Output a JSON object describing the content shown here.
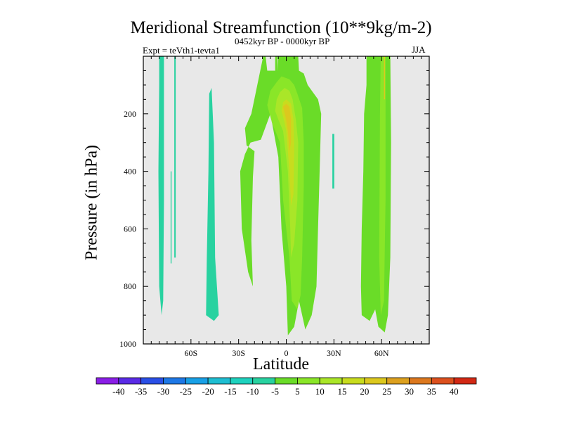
{
  "chart_data": {
    "type": "contour",
    "title": "Meridional Streamfunction (10**9kg/m-2)",
    "left_label": "Expt = teVth1-tevta1",
    "center_label": "0452kyr BP - 0000kyr BP",
    "right_label": "JJA",
    "xlabel": "Latitude",
    "ylabel": "Pressure (in hPa)",
    "xlim": [
      -90,
      90
    ],
    "ylim": [
      1000,
      0
    ],
    "x_ticks": [
      {
        "value": -60,
        "label": "60S"
      },
      {
        "value": -30,
        "label": "30S"
      },
      {
        "value": 0,
        "label": "0"
      },
      {
        "value": 30,
        "label": "30N"
      },
      {
        "value": 60,
        "label": "60N"
      }
    ],
    "y_ticks": [
      {
        "value": 200,
        "label": "200"
      },
      {
        "value": 400,
        "label": "400"
      },
      {
        "value": 600,
        "label": "600"
      },
      {
        "value": 800,
        "label": "800"
      },
      {
        "value": 1000,
        "label": "1000"
      }
    ],
    "background_color": "#e8e8e8",
    "levels": [
      -40,
      -35,
      -30,
      -25,
      -20,
      -15,
      -10,
      -5,
      5,
      10,
      15,
      20,
      25,
      30,
      35,
      40
    ],
    "level_labels": [
      "-40",
      "-35",
      "-30",
      "-25",
      "-20",
      "-15",
      "-10",
      "-5",
      "5",
      "10",
      "15",
      "20",
      "25",
      "30",
      "35",
      "40"
    ],
    "colors": [
      "#8a1ee6",
      "#5a2be6",
      "#2a4fe6",
      "#1e78e6",
      "#18a0e6",
      "#1ebed2",
      "#1ed2be",
      "#28d2a0",
      "#6adc28",
      "#8ae628",
      "#aae628",
      "#c8dc1e",
      "#dcc81e",
      "#dca01e",
      "#dc781e",
      "#dc501e",
      "#d22814"
    ],
    "regions": [
      {
        "name": "sh-polar-negative-cell",
        "value": -7,
        "color_index": 7,
        "outline": [
          [
            -80,
            0
          ],
          [
            -77,
            0
          ],
          [
            -77,
            500
          ],
          [
            -77.5,
            850
          ],
          [
            -78.5,
            900
          ],
          [
            -80,
            800
          ],
          [
            -80.5,
            400
          ],
          [
            -80,
            100
          ]
        ]
      },
      {
        "name": "sh-thin-negative-streak",
        "value": -7,
        "color_index": 7,
        "outline": [
          [
            -70.5,
            0
          ],
          [
            -69.6,
            0
          ],
          [
            -69.6,
            700
          ],
          [
            -70.5,
            700
          ]
        ]
      },
      {
        "name": "sh-thin-negative-streak-2",
        "value": -7,
        "color_index": 7,
        "outline": [
          [
            -72.8,
            400
          ],
          [
            -72.2,
            400
          ],
          [
            -72.2,
            720
          ],
          [
            -72.8,
            720
          ]
        ]
      },
      {
        "name": "sh-midlat-negative-cell",
        "value": -7,
        "color_index": 7,
        "outline": [
          [
            -48.5,
            130
          ],
          [
            -47,
            110
          ],
          [
            -45.5,
            300
          ],
          [
            -44.8,
            700
          ],
          [
            -42.5,
            900
          ],
          [
            -45.5,
            920
          ],
          [
            -50.5,
            900
          ],
          [
            -50,
            700
          ],
          [
            -49,
            400
          ]
        ]
      },
      {
        "name": "nh-thin-negative-streak",
        "value": -7,
        "color_index": 7,
        "outline": [
          [
            29,
            270
          ],
          [
            30.2,
            270
          ],
          [
            30.2,
            460
          ],
          [
            29,
            460
          ]
        ]
      },
      {
        "name": "tropical-positive-cell-outer",
        "value": 6,
        "color_index": 8,
        "outline": [
          [
            -14.5,
            0
          ],
          [
            -13,
            0
          ],
          [
            -12,
            50
          ],
          [
            -5.5,
            50
          ],
          [
            -5,
            0
          ],
          [
            -2,
            0
          ],
          [
            6.5,
            0
          ],
          [
            7.5,
            0
          ],
          [
            8,
            50
          ],
          [
            11,
            60
          ],
          [
            13.5,
            100
          ],
          [
            20,
            150
          ],
          [
            22,
            200
          ],
          [
            21,
            400
          ],
          [
            20,
            600
          ],
          [
            19,
            800
          ],
          [
            16,
            900
          ],
          [
            12,
            950
          ],
          [
            8,
            850
          ],
          [
            5,
            940
          ],
          [
            1,
            970
          ],
          [
            0,
            800
          ],
          [
            -3,
            600
          ],
          [
            -5,
            350
          ],
          [
            -10,
            200
          ],
          [
            -16,
            290
          ],
          [
            -22.5,
            300
          ],
          [
            -26,
            340
          ],
          [
            -29,
            400
          ],
          [
            -28,
            600
          ],
          [
            -24,
            750
          ],
          [
            -21,
            800
          ],
          [
            -22,
            640
          ],
          [
            -21,
            420
          ],
          [
            -20,
            330
          ],
          [
            -25,
            310
          ],
          [
            -26,
            250
          ],
          [
            -22,
            200
          ]
        ]
      },
      {
        "name": "sh-tropics-green-streak",
        "value": 6,
        "color_index": 8,
        "outline": [
          [
            -14,
            0
          ],
          [
            -13,
            0
          ],
          [
            -13,
            180
          ],
          [
            -14,
            180
          ]
        ]
      },
      {
        "name": "tropical-streak-upper",
        "value": 6,
        "color_index": 8,
        "outline": [
          [
            -7,
            0
          ],
          [
            -5.5,
            0
          ],
          [
            -5.5,
            110
          ],
          [
            -7,
            110
          ]
        ]
      },
      {
        "name": "nh-green-cell",
        "value": 6,
        "color_index": 8,
        "outline": [
          [
            50.5,
            0
          ],
          [
            56,
            0
          ],
          [
            64.5,
            0
          ],
          [
            65.5,
            0
          ],
          [
            66,
            300
          ],
          [
            65.5,
            700
          ],
          [
            64,
            900
          ],
          [
            62,
            960
          ],
          [
            58,
            940
          ],
          [
            56,
            880
          ],
          [
            52.5,
            920
          ],
          [
            47.5,
            900
          ],
          [
            47,
            800
          ],
          [
            47.5,
            600
          ],
          [
            48.5,
            400
          ],
          [
            49,
            200
          ],
          [
            50.5,
            100
          ]
        ]
      },
      {
        "name": "tropical-positive-cell-10",
        "value": 11,
        "color_index": 9,
        "outline": [
          [
            -12,
            170
          ],
          [
            -10,
            120
          ],
          [
            -6,
            90
          ],
          [
            -3,
            70
          ],
          [
            2,
            80
          ],
          [
            5,
            100
          ],
          [
            7,
            130
          ],
          [
            10,
            180
          ],
          [
            11,
            300
          ],
          [
            11,
            450
          ],
          [
            10,
            700
          ],
          [
            9,
            830
          ],
          [
            7,
            880
          ],
          [
            3.5,
            850
          ],
          [
            2,
            700
          ],
          [
            -2,
            500
          ],
          [
            -4,
            300
          ],
          [
            -9,
            230
          ]
        ]
      },
      {
        "name": "nh-green-cell-inner",
        "value": 11,
        "color_index": 9,
        "outline": [
          [
            59.5,
            0
          ],
          [
            62.5,
            0
          ],
          [
            62.5,
            500
          ],
          [
            61.5,
            850
          ],
          [
            59.5,
            900
          ],
          [
            58.5,
            700
          ],
          [
            59,
            200
          ]
        ]
      },
      {
        "name": "tropical-positive-cell-15",
        "value": 16,
        "color_index": 10,
        "outline": [
          [
            -7,
            190
          ],
          [
            -6,
            150
          ],
          [
            -4,
            125
          ],
          [
            -1,
            110
          ],
          [
            2,
            120
          ],
          [
            4,
            150
          ],
          [
            6,
            220
          ],
          [
            7.5,
            300
          ],
          [
            7,
            500
          ],
          [
            5,
            650
          ],
          [
            3,
            700
          ],
          [
            2.5,
            600
          ],
          [
            1,
            400
          ],
          [
            -2,
            260
          ],
          [
            -5,
            220
          ]
        ]
      },
      {
        "name": "tropical-positive-cell-20",
        "value": 21,
        "color_index": 11,
        "outline": [
          [
            -3,
            190
          ],
          [
            -2,
            160
          ],
          [
            0,
            150
          ],
          [
            3,
            165
          ],
          [
            4.5,
            220
          ],
          [
            5,
            320
          ],
          [
            4.5,
            480
          ],
          [
            3,
            520
          ],
          [
            2,
            400
          ],
          [
            0,
            260
          ],
          [
            -1.5,
            220
          ]
        ]
      },
      {
        "name": "tropical-positive-cell-25",
        "value": 26,
        "color_index": 12,
        "outline": [
          [
            -2,
            175
          ],
          [
            0,
            165
          ],
          [
            2,
            175
          ],
          [
            3,
            220
          ],
          [
            3,
            300
          ],
          [
            2,
            330
          ],
          [
            1,
            260
          ],
          [
            -0.5,
            210
          ]
        ]
      },
      {
        "name": "nh-orange-streak",
        "value": 26,
        "color_index": 12,
        "outline": [
          [
            61.5,
            0
          ],
          [
            62.2,
            0
          ],
          [
            62.2,
            150
          ],
          [
            61.5,
            150
          ]
        ]
      }
    ]
  }
}
